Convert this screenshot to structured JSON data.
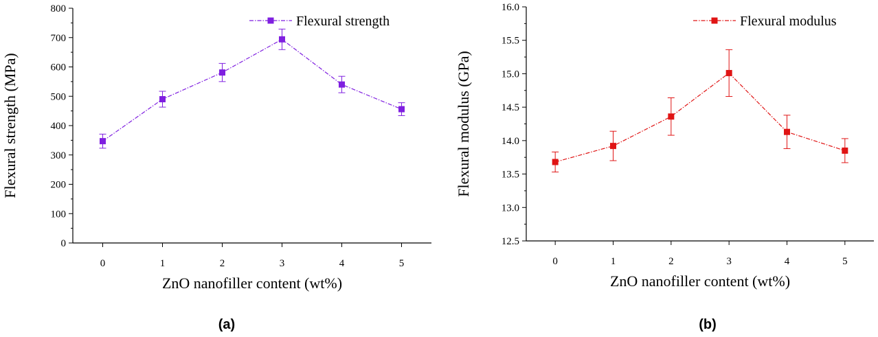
{
  "chart_data": [
    {
      "type": "line",
      "panel_label": "(a)",
      "x": [
        0,
        1,
        2,
        3,
        4,
        5
      ],
      "xticks": [
        "0",
        "1",
        "2",
        "3",
        "4",
        "5"
      ],
      "xlim": [
        -0.5,
        5.5
      ],
      "ylim": [
        0,
        800
      ],
      "yticks": [
        "0",
        "100",
        "200",
        "300",
        "400",
        "500",
        "600",
        "700",
        "800"
      ],
      "xlabel": "ZnO nanofiller content (wt%)",
      "ylabel": "Flexural strength (MPa)",
      "color": "#7f1fe0",
      "legend_position": "top-right",
      "series": [
        {
          "name": "Flexural strength",
          "values": [
            347,
            490,
            581,
            694,
            540,
            456
          ],
          "errors": [
            24,
            27,
            31,
            35,
            28,
            22
          ]
        }
      ]
    },
    {
      "type": "line",
      "panel_label": "(b)",
      "x": [
        0,
        1,
        2,
        3,
        4,
        5
      ],
      "xticks": [
        "0",
        "1",
        "2",
        "3",
        "4",
        "5"
      ],
      "xlim": [
        -0.5,
        5.5
      ],
      "ylim": [
        12.5,
        16.0
      ],
      "yticks": [
        "12.5",
        "13.0",
        "13.5",
        "14.0",
        "14.5",
        "15.0",
        "15.5",
        "16.0"
      ],
      "xlabel": "ZnO nanofiller content (wt%)",
      "ylabel": "Flexural modulus (GPa)",
      "color": "#e01414",
      "legend_position": "top-right",
      "series": [
        {
          "name": "Flexural modulus",
          "values": [
            13.68,
            13.92,
            14.36,
            15.01,
            14.13,
            13.85
          ],
          "errors": [
            0.15,
            0.22,
            0.28,
            0.35,
            0.25,
            0.18
          ]
        }
      ]
    }
  ]
}
